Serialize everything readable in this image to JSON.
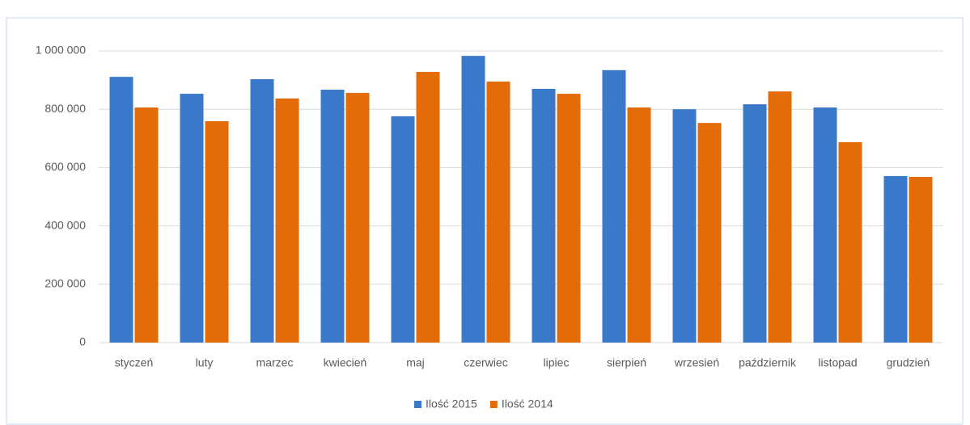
{
  "chart_data": {
    "type": "bar",
    "categories": [
      "styczeń",
      "luty",
      "marzec",
      "kwiecień",
      "maj",
      "czerwiec",
      "lipiec",
      "sierpień",
      "wrzesień",
      "październik",
      "listopad",
      "grudzień"
    ],
    "series": [
      {
        "name": "Ilość 2015",
        "color": "#3a78c9",
        "values": [
          911000,
          853000,
          903000,
          867000,
          776000,
          983000,
          870000,
          934000,
          800000,
          817000,
          806000,
          571000
        ]
      },
      {
        "name": "Ilość 2014",
        "color": "#e36c09",
        "values": [
          806000,
          759000,
          837000,
          856000,
          928000,
          895000,
          853000,
          806000,
          753000,
          861000,
          687000,
          568000
        ]
      }
    ],
    "ylim": [
      0,
      1000000
    ],
    "yticks": [
      0,
      {
        "value": 200000,
        "label": "200 000"
      },
      {
        "value": 400000,
        "label": "400 000"
      },
      {
        "value": 600000,
        "label": "600 000"
      },
      {
        "value": 800000,
        "label": "800 000"
      },
      {
        "value": 1000000,
        "label": "1 000 000"
      }
    ],
    "grid": true,
    "legend": "bottom"
  }
}
